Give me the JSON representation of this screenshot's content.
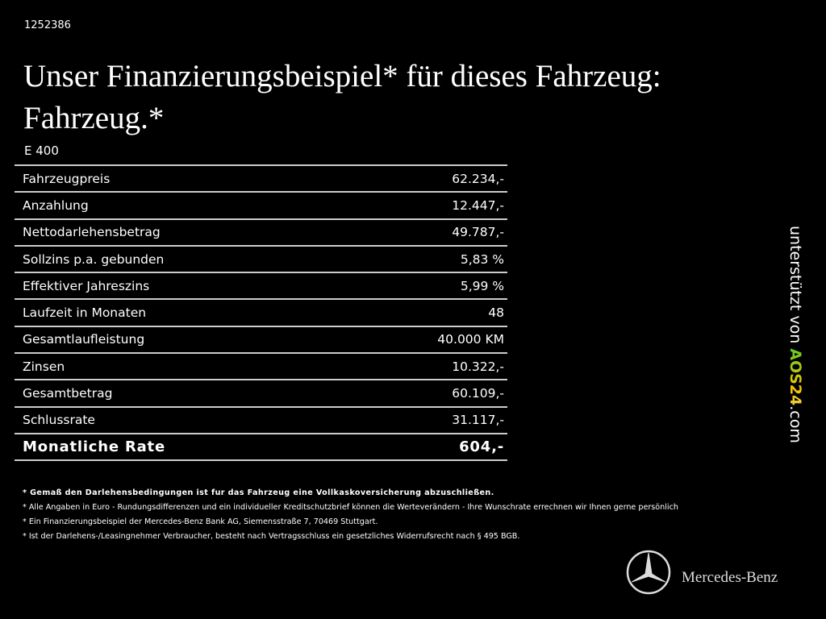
{
  "header": {
    "id": "1252386",
    "title": [
      "Unser Finanzierungsbeispiel* für dieses Fahrzeug:",
      "Fahrzeug.*"
    ],
    "model": "E 400"
  },
  "table": {
    "rows": [
      [
        "Fahrzeugpreis",
        "62.234,-"
      ],
      [
        "Anzahlung",
        "12.447,-"
      ],
      [
        "Nettodarlehensbetrag",
        "49.787,-"
      ],
      [
        "Sollzins p.a. gebunden",
        "5,83 %"
      ],
      [
        "Effektiver Jahreszins",
        "5,99 %"
      ],
      [
        "Laufzeit in Monaten",
        "48"
      ],
      [
        "Gesamtlaufleistung",
        "40.000 KM"
      ],
      [
        "Zinsen",
        "10.322,-"
      ],
      [
        "Gesamtbetrag",
        "60.109,-"
      ],
      [
        "Schlussrate",
        "31.117,-"
      ],
      [
        "Monatliche Rate",
        "604,-"
      ]
    ]
  },
  "footnotes": [
    "* Gemaß den Darlehensbedingungen ist fur das Fahrzeug eine Vollkaskoversicherung abzuschließen.",
    "* Alle Angaben in Euro - Rundungsdifferenzen und ein individueller Kreditschutzbrief können die Werteverändern - Ihre Wunschrate errechnen wir Ihnen gerne persönlich",
    "* Ein Finanzierungsbeispiel der Mercedes-Benz Bank AG, Siemensstraße 7, 70469 Stuttgart.",
    "* Ist der Darlehens-/Leasingnehmer Verbraucher, besteht nach Vertragsschluss ein gesetzliches Widerrufsrecht nach § 495 BGB."
  ],
  "sidebar": {
    "prefix": "unterstützt von",
    "brand": "AOS24",
    "suffix": ".com"
  },
  "logo": {
    "text": "Mercedes-Benz"
  }
}
